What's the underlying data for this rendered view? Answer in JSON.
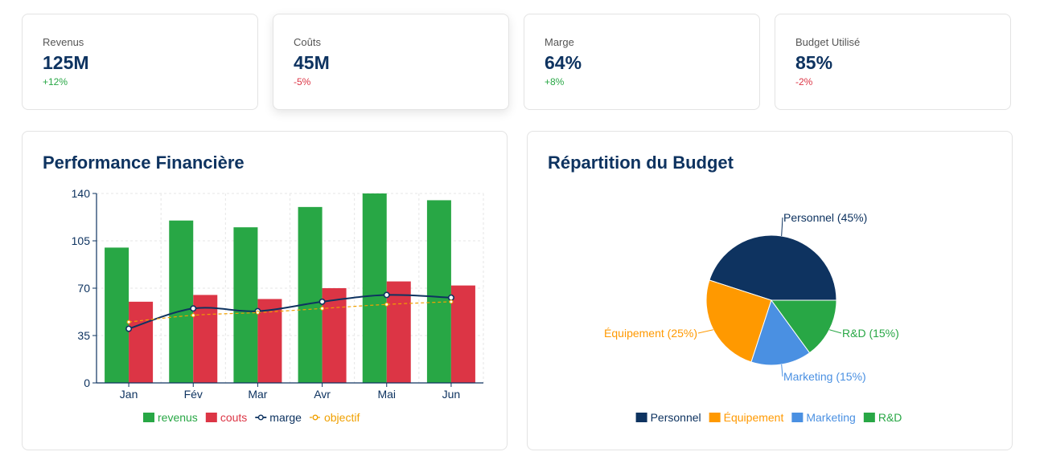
{
  "kpis": [
    {
      "label": "Revenus",
      "value": "125M",
      "change": "+12%",
      "change_color": "#28a745"
    },
    {
      "label": "Coûts",
      "value": "45M",
      "change": "-5%",
      "change_color": "#dc3545"
    },
    {
      "label": "Marge",
      "value": "64%",
      "change": "+8%",
      "change_color": "#28a745"
    },
    {
      "label": "Budget Utilisé",
      "value": "85%",
      "change": "-2%",
      "change_color": "#dc3545"
    }
  ],
  "panels": {
    "performance_title": "Performance Financière",
    "budget_title": "Répartition du Budget"
  },
  "colors": {
    "revenus": "#28a745",
    "couts": "#dc3545",
    "marge": "#0e3360",
    "objectif": "#f0a000",
    "personnel": "#0e3360",
    "equipement": "#ff9900",
    "marketing": "#4a90e2",
    "rd": "#28a745"
  },
  "chart_data": [
    {
      "type": "bar",
      "title": "Performance Financière",
      "categories": [
        "Jan",
        "Fév",
        "Mar",
        "Avr",
        "Mai",
        "Jun"
      ],
      "ylim": [
        0,
        140
      ],
      "yticks": [
        0,
        35,
        70,
        105,
        140
      ],
      "grid": true,
      "legend_position": "bottom",
      "series": [
        {
          "name": "revenus",
          "type": "bar",
          "values": [
            100,
            120,
            115,
            130,
            140,
            135
          ]
        },
        {
          "name": "couts",
          "type": "bar",
          "values": [
            60,
            65,
            62,
            70,
            75,
            72
          ]
        },
        {
          "name": "marge",
          "type": "line",
          "values": [
            40,
            55,
            53,
            60,
            65,
            63
          ]
        },
        {
          "name": "objectif",
          "type": "line",
          "dashed": true,
          "values": [
            45,
            50,
            52,
            55,
            58,
            60
          ]
        }
      ]
    },
    {
      "type": "pie",
      "title": "Répartition du Budget",
      "legend_position": "bottom",
      "slices": [
        {
          "name": "Personnel",
          "value": 45,
          "label": "Personnel (45%)"
        },
        {
          "name": "Équipement",
          "value": 25,
          "label": "Équipement (25%)"
        },
        {
          "name": "Marketing",
          "value": 15,
          "label": "Marketing (15%)"
        },
        {
          "name": "R&D",
          "value": 15,
          "label": "R&D (15%)"
        }
      ]
    }
  ]
}
